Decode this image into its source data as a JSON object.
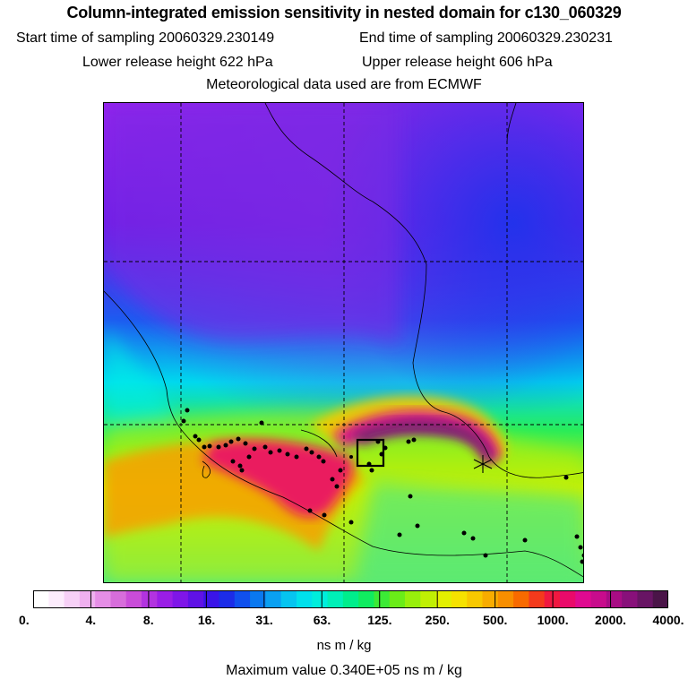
{
  "header": {
    "title": "Column-integrated emission sensitivity in nested domain for c130_060329",
    "start_sampling": "Start time of sampling 20060329.230149",
    "end_sampling": "End time of sampling 20060329.230231",
    "lower_release": "Lower release height  622 hPa",
    "upper_release": "Upper release height  606 hPa",
    "met_data": "Meteorological data used are from ECMWF"
  },
  "map": {
    "description_colors": {
      "low": "#8a1cf0",
      "mid": "#00e8e8",
      "high": "#e00a90"
    }
  },
  "colorbar": {
    "colors": [
      "#ffffff",
      "#fcecfc",
      "#f6d0f6",
      "#efb0ef",
      "#e58ee6",
      "#d76ddb",
      "#c94cd9",
      "#b233e0",
      "#9a1ee6",
      "#7f16e8",
      "#5f12e6",
      "#3a14e8",
      "#1c2ce8",
      "#1050ee",
      "#0a78f0",
      "#0aa0f2",
      "#06c4f0",
      "#00e0ec",
      "#00eedc",
      "#00f0b8",
      "#00ee8c",
      "#10ec60",
      "#3cea36",
      "#6aec18",
      "#98ef0c",
      "#c0f004",
      "#e4f000",
      "#f6e200",
      "#f8c800",
      "#f8ac00",
      "#f88e00",
      "#f86a00",
      "#f43a1c",
      "#f01840",
      "#ea0a6a",
      "#e00a90",
      "#c80c8c",
      "#a80c84",
      "#88107a",
      "#681464",
      "#4a1448"
    ],
    "ticks": [
      "0.",
      "4.",
      "8.",
      "16.",
      "31.",
      "63.",
      "125.",
      "250.",
      "500.",
      "1000.",
      "2000.",
      "4000."
    ],
    "units": "ns m / kg"
  },
  "footer": {
    "max_value": "Maximum value  0.340E+05 ns m / kg"
  }
}
